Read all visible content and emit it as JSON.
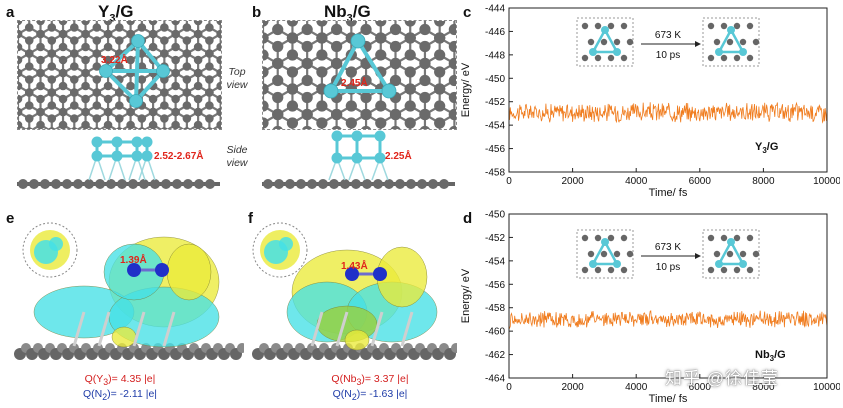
{
  "panels": {
    "a": {
      "letter": "a",
      "title_main": "Y",
      "title_sub": "3",
      "title_rest": "/G",
      "top_distance": "3.22Å",
      "side_distance": "2.52-2.67Å"
    },
    "b": {
      "letter": "b",
      "title_main": "Nb",
      "title_sub": "3",
      "title_rest": "/G",
      "top_distance": "2.45Å",
      "side_distance": "2.25Å",
      "top_view_label": "Top view",
      "side_view_label": "Side view"
    },
    "c": {
      "letter": "c",
      "label_main": "Y",
      "label_sub": "3",
      "label_rest": "/G",
      "inset_temp": "673 K",
      "inset_time": "10 ps"
    },
    "d": {
      "letter": "d",
      "label_main": "Nb",
      "label_sub": "3",
      "label_rest": "/G",
      "inset_temp": "673 K",
      "inset_time": "10 ps"
    },
    "e": {
      "letter": "e",
      "bond": "1.39Å",
      "q_metal_pre": "Q(Y",
      "q_metal_sub": "3",
      "q_metal_post": ")=  4.35 |e|",
      "q_n2_pre": "Q(N",
      "q_n2_sub": "2",
      "q_n2_post": ")= -2.11 |e|"
    },
    "f": {
      "letter": "f",
      "bond": "1.43Å",
      "q_metal_pre": "Q(Nb",
      "q_metal_sub": "3",
      "q_metal_post": ")= 3.37 |e|",
      "q_n2_pre": "Q(N",
      "q_n2_sub": "2",
      "q_n2_post": ")= -1.63 |e|"
    }
  },
  "chart_data": [
    {
      "type": "line",
      "panel": "c",
      "xlabel": "Time/ fs",
      "ylabel": "Energy/ eV",
      "xlim": [
        0,
        10000
      ],
      "ylim": [
        -458,
        -444
      ],
      "xticks": [
        0,
        2000,
        4000,
        6000,
        8000,
        10000
      ],
      "yticks": [
        -444,
        -446,
        -448,
        -450,
        -452,
        -454,
        -456,
        -458
      ],
      "series": [
        {
          "mean": -452.9,
          "amplitude": 0.7,
          "color": "#f07c1e",
          "x_start": 0,
          "x_end": 10000
        }
      ],
      "annotation": "Y3/G"
    },
    {
      "type": "line",
      "panel": "d",
      "xlabel": "Time/ fs",
      "ylabel": "Energy/ eV",
      "xlim": [
        0,
        10000
      ],
      "ylim": [
        -464,
        -450
      ],
      "xticks": [
        0,
        2000,
        4000,
        6000,
        8000,
        10000
      ],
      "yticks": [
        -450,
        -452,
        -454,
        -456,
        -458,
        -460,
        -462,
        -464
      ],
      "series": [
        {
          "mean": -459.0,
          "amplitude": 0.6,
          "color": "#f07c1e",
          "x_start": 0,
          "x_end": 10000
        }
      ],
      "annotation": "Nb3/G"
    }
  ],
  "watermark": "知乎 @徐佳莹",
  "colors": {
    "carbon": "#6e6e6e",
    "metal": "#58c8d6",
    "nitrogen": "#2030c8",
    "iso_yellow": "#eaea3a",
    "iso_cyan": "#45e0e6",
    "line": "#f07c1e"
  }
}
